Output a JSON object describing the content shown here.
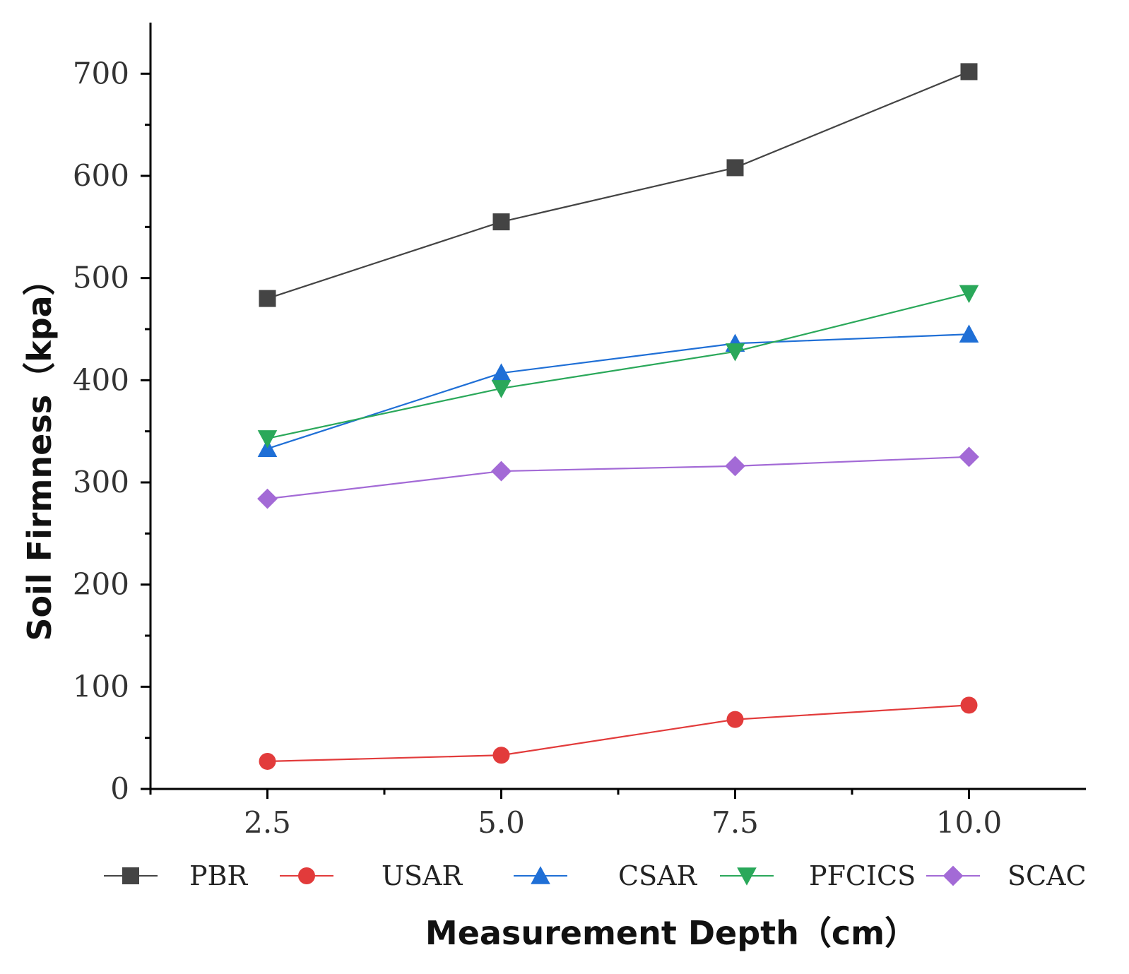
{
  "chart_data": {
    "type": "line",
    "title": "",
    "xlabel": "Measurement Depth（cm）",
    "ylabel": "Soil Firmness（kpa）",
    "x": [
      2.5,
      5.0,
      7.5,
      10.0
    ],
    "x_tick_labels": [
      "2.5",
      "5.0",
      "7.5",
      "10.0"
    ],
    "y_ticks": [
      0,
      100,
      200,
      300,
      400,
      500,
      600,
      700
    ],
    "y_tick_labels": [
      "0",
      "100",
      "200",
      "300",
      "400",
      "500",
      "600",
      "700"
    ],
    "ylim": [
      0,
      750
    ],
    "xlim": [
      1.25,
      11.25
    ],
    "grid": false,
    "legend_position": "bottom",
    "series": [
      {
        "name": "PBR",
        "marker": "square",
        "color": "#444444",
        "values": [
          480,
          555,
          608,
          702
        ]
      },
      {
        "name": "USAR",
        "marker": "circle",
        "color": "#e23b3b",
        "values": [
          27,
          33,
          68,
          82
        ]
      },
      {
        "name": "CSAR",
        "marker": "triangle-up",
        "color": "#1f6fd6",
        "values": [
          333,
          407,
          436,
          445
        ]
      },
      {
        "name": "PFCICS",
        "marker": "triangle-down",
        "color": "#2aa85a",
        "values": [
          343,
          392,
          428,
          485
        ]
      },
      {
        "name": "SCAC",
        "marker": "diamond",
        "color": "#a36ad6",
        "values": [
          284,
          311,
          316,
          325
        ]
      }
    ]
  }
}
